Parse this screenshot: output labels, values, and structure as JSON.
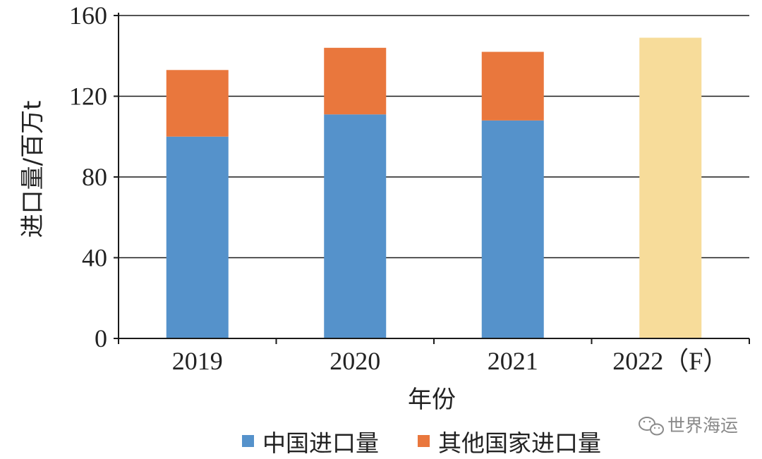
{
  "chart_data": {
    "type": "bar",
    "stacked": true,
    "categories": [
      "2019",
      "2020",
      "2021",
      "2022（F）"
    ],
    "series": [
      {
        "name": "中国进口量",
        "values": [
          100,
          111,
          108,
          null
        ],
        "color": "#5592cb"
      },
      {
        "name": "其他国家进口量",
        "values": [
          33,
          33,
          34,
          null
        ],
        "color": "#e9773d"
      }
    ],
    "forecast": {
      "category": "2022（F）",
      "total": 149,
      "color": "#f7dc9a"
    },
    "xlabel": "年份",
    "ylabel": "进口量/百万t",
    "ylim": [
      0,
      160
    ],
    "yticks": [
      0,
      40,
      80,
      120,
      160
    ],
    "grid": true,
    "legend_position": "bottom"
  },
  "watermark": {
    "text": "世界海运",
    "icon": "wechat-icon"
  }
}
